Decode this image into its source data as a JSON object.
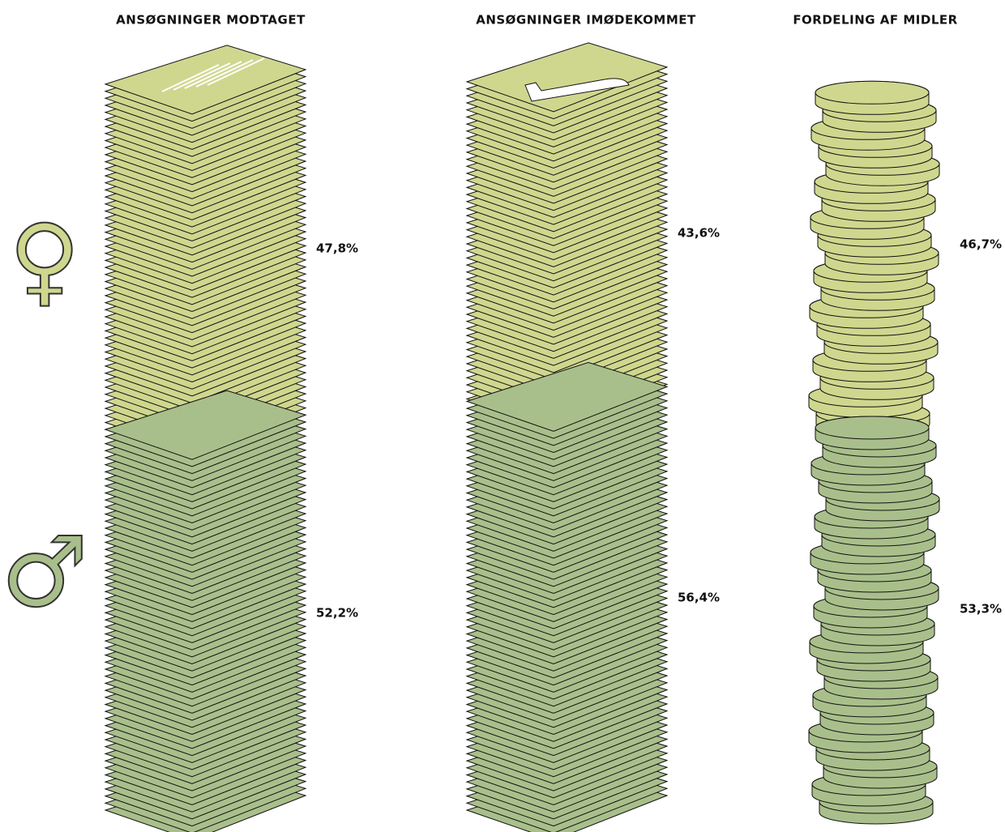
{
  "chart_data": {
    "type": "pictorial-stacked-bar",
    "categories": [
      "ANSØGNINGER MODTAGET",
      "ANSØGNINGER IMØDEKOMMET",
      "FORDELING AF MIDLER"
    ],
    "series": [
      {
        "name": "♀",
        "color": "#cfd78e",
        "values": [
          47.8,
          43.6,
          46.7
        ],
        "value_labels": [
          "47,8%",
          "43,6%",
          "46,7%"
        ]
      },
      {
        "name": "♂",
        "color": "#a9bf8b",
        "values": [
          52.2,
          56.4,
          53.3
        ],
        "value_labels": [
          "52,2%",
          "56,4%",
          "53,3%"
        ]
      }
    ]
  }
}
